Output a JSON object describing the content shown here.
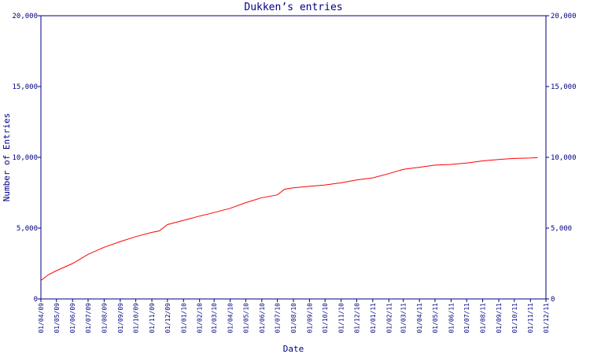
{
  "chart_data": {
    "type": "line",
    "title": "Dukken’s entries",
    "xlabel": "Date",
    "ylabel": "Number of Entries",
    "ylim": [
      0,
      20000
    ],
    "y_ticks": [
      {
        "value": 0,
        "label": "0"
      },
      {
        "value": 5000,
        "label": "5,000"
      },
      {
        "value": 10000,
        "label": "10,000"
      },
      {
        "value": 15000,
        "label": "15,000"
      },
      {
        "value": 20000,
        "label": "20,000"
      }
    ],
    "x_ticks": [
      "01/04/09",
      "01/05/09",
      "01/06/09",
      "01/07/09",
      "01/08/09",
      "01/09/09",
      "01/10/09",
      "01/11/09",
      "01/12/09",
      "01/01/10",
      "01/02/10",
      "01/03/10",
      "01/04/10",
      "01/05/10",
      "01/06/10",
      "01/07/10",
      "01/08/10",
      "01/09/10",
      "01/10/10",
      "01/11/10",
      "01/12/10",
      "01/01/11",
      "01/02/11",
      "01/03/11",
      "01/04/11",
      "01/05/11",
      "01/06/11",
      "01/07/11",
      "01/08/11",
      "01/09/11",
      "01/10/11",
      "01/11/11",
      "01/12/11"
    ],
    "grid": false,
    "series": [
      {
        "color": "#ff0000",
        "x": [
          "01/04/09",
          "15/04/09",
          "01/05/09",
          "01/06/09",
          "01/07/09",
          "01/08/09",
          "01/09/09",
          "01/10/09",
          "01/11/09",
          "15/11/09",
          "01/12/09",
          "01/01/10",
          "01/02/10",
          "01/03/10",
          "01/04/10",
          "01/05/10",
          "01/06/10",
          "01/07/10",
          "15/07/10",
          "01/08/10",
          "01/09/10",
          "01/10/10",
          "01/11/10",
          "01/12/10",
          "01/01/11",
          "01/02/11",
          "01/03/11",
          "01/04/11",
          "01/05/11",
          "01/06/11",
          "01/07/11",
          "01/08/11",
          "01/09/11",
          "01/10/11",
          "01/11/11",
          "15/11/11"
        ],
        "values": [
          1300,
          1700,
          2000,
          2500,
          3150,
          3650,
          4050,
          4400,
          4700,
          4800,
          5250,
          5550,
          5850,
          6100,
          6400,
          6800,
          7150,
          7350,
          7750,
          7850,
          7950,
          8050,
          8200,
          8400,
          8550,
          8850,
          9150,
          9300,
          9450,
          9500,
          9600,
          9750,
          9850,
          9920,
          9950,
          9980
        ]
      }
    ],
    "axis_color": "#000080"
  }
}
